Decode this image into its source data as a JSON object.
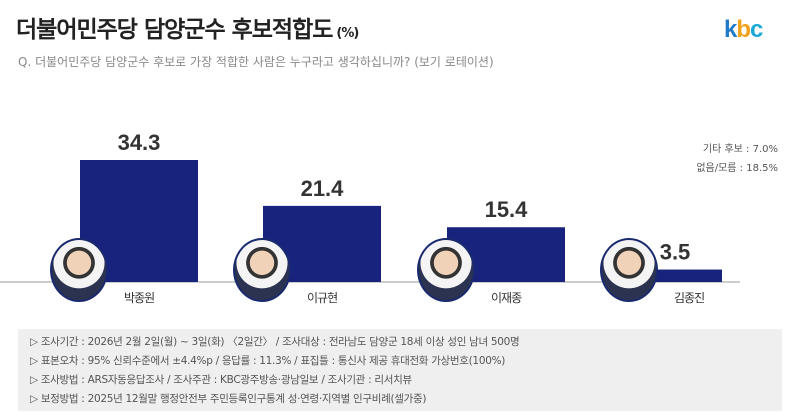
{
  "header": {
    "title": "더불어민주당 담양군수 후보적합도",
    "title_unit": "(%)",
    "logo": "kbc",
    "question": "Q. 더불어민주당 담양군수 후보로 가장 적합한 사람은 누구라고 생각하십니까? (보기 로테이션)"
  },
  "notes": [
    "기타 후보 : 7.0%",
    "없음/모름 : 18.5%"
  ],
  "chart_data": {
    "type": "bar",
    "categories": [
      "박종원",
      "이규현",
      "이재종",
      "김종진"
    ],
    "values": [
      34.3,
      21.4,
      15.4,
      3.5
    ],
    "value_labels": [
      "34.3",
      "21.4",
      "15.4",
      "3.5"
    ],
    "bar_color": "#18237d",
    "ylim": [
      0,
      40
    ],
    "grid": false
  },
  "footer": [
    "▷ 조사기간 : 2026년 2월 2일(월) ~ 3일(화) 〈2일간〉 / 조사대상 : 전라남도 담양군 18세 이상 성인 남녀 500명",
    "▷ 표본오차 : 95% 신뢰수준에서 ±4.4%p / 응답률 : 11.3% / 표집틀 : 통신사 제공 휴대전화 가상번호(100%)",
    "▷ 조사방법 : ARS자동응답조사 / 조사주관 : KBC광주방송·광남일보 / 조사기관 : 리서치뷰",
    "▷ 보정방법 : 2025년 12월말 행정안전부 주민등록인구통계 성·연령·지역별 인구비례(셀가중)"
  ]
}
